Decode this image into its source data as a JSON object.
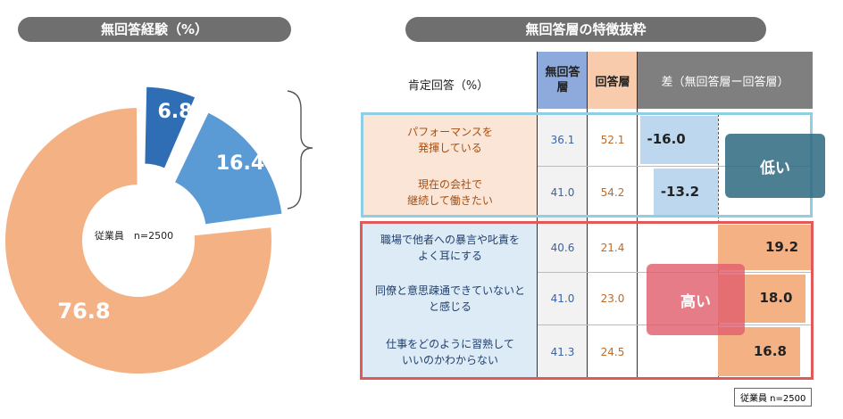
{
  "left_title": "無回答経験（%）",
  "right_title": "無回答層の特徴抜粋",
  "donut_center": "従業員　n=2500",
  "table": {
    "header_item": "肯定回答（%）",
    "col_no_answer": "無回答層",
    "col_answer": "回答層",
    "col_diff": "差（無回答層ー回答層）",
    "rows": [
      {
        "label1": "パフォーマンスを",
        "label2": "発揮している",
        "no_answer": "36.1",
        "answer": "52.1",
        "diff": "-16.0"
      },
      {
        "label1": "現在の会社で",
        "label2": "継続して働きたい",
        "no_answer": "41.0",
        "answer": "54.2",
        "diff": "-13.2"
      },
      {
        "label1": "職場で他者への暴言や叱責を",
        "label2": "よく耳にする",
        "no_answer": "40.6",
        "answer": "21.4",
        "diff": "19.2"
      },
      {
        "label1": "同僚と意思疎通できていないと",
        "label2": "と感じる",
        "no_answer": "41.0",
        "answer": "23.0",
        "diff": "18.0"
      },
      {
        "label1": "仕事をどのように習熟して",
        "label2": "いいのかわからない",
        "no_answer": "41.3",
        "answer": "24.5",
        "diff": "16.8"
      }
    ],
    "low_label": "低い",
    "high_label": "高い",
    "note": "従業員 n=2500"
  },
  "chart_data": [
    {
      "type": "pie",
      "title": "無回答経験（%）",
      "labels": [
        "",
        "",
        ""
      ],
      "values": [
        6.8,
        16.4,
        76.8
      ],
      "colors": [
        "#2f6eb4",
        "#5b9bd5",
        "#f4b183"
      ]
    },
    {
      "type": "bar",
      "title": "差（無回答層ー回答層）",
      "categories": [
        "パフォーマンスを発揮している",
        "現在の会社で継続して働きたい",
        "職場で他者への暴言や叱責をよく耳にする",
        "同僚と意思疎通できていないとと感じる",
        "仕事をどのように習熟していいのかわからない"
      ],
      "values": [
        -16.0,
        -13.2,
        19.2,
        18.0,
        16.8
      ],
      "colors": {
        "negative": "#bdd7ee",
        "positive": "#f4b183"
      }
    }
  ],
  "colors": {
    "blue_dark": "#2f6eb4",
    "blue": "#5b9bd5",
    "orange": "#f4b183",
    "frame_blue": "#8fcfe6",
    "frame_red": "#e05a5a"
  }
}
